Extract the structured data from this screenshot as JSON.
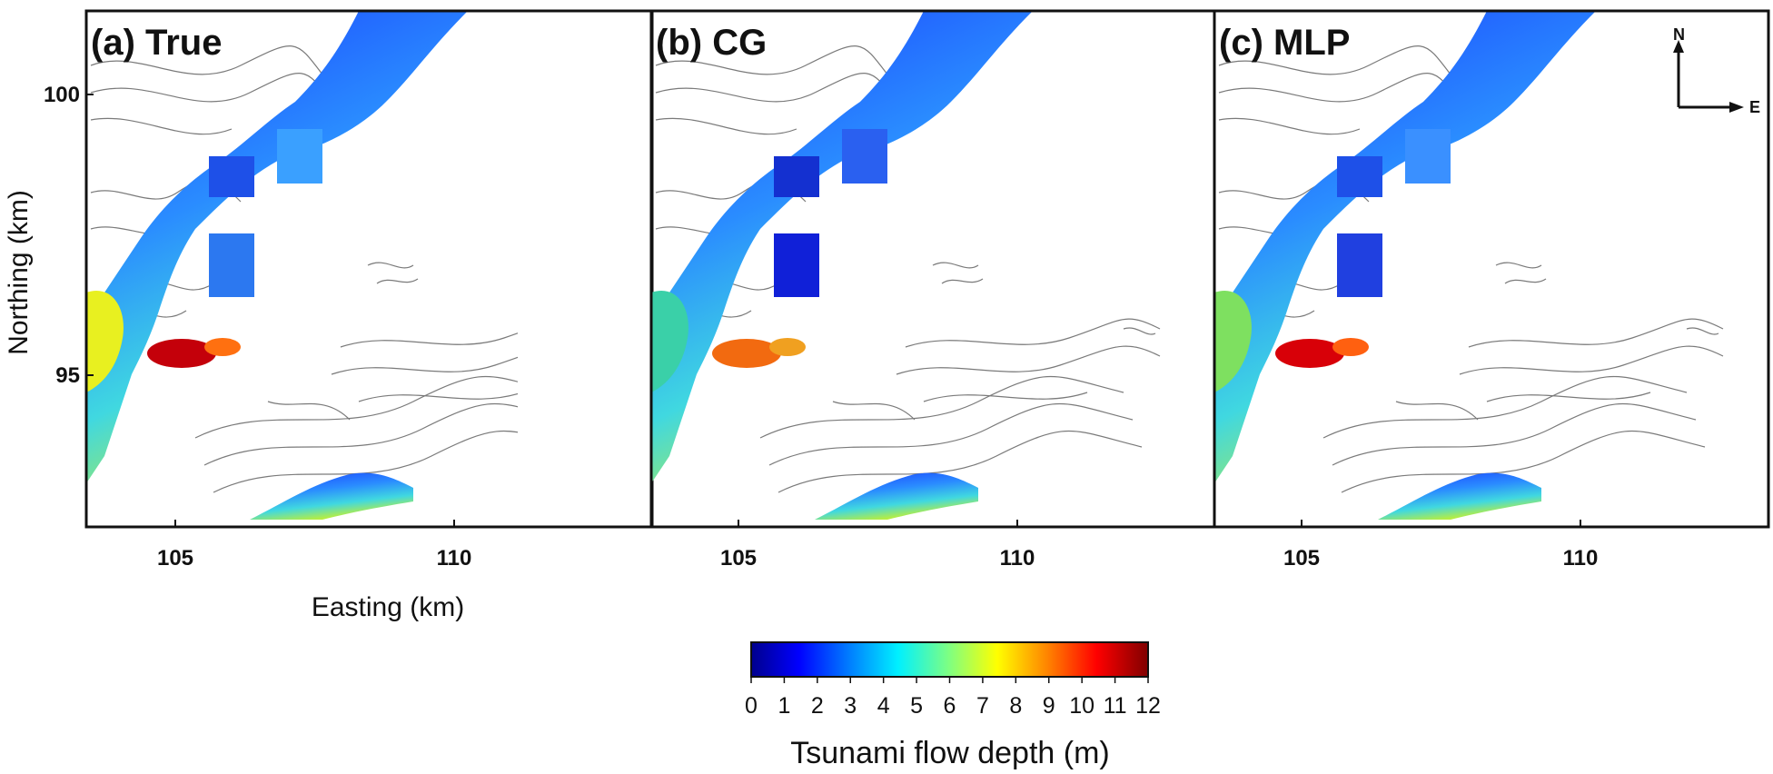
{
  "figure": {
    "panels": [
      {
        "id": "a",
        "label": "(a) True",
        "hotspot_color": "#c4000a",
        "bay_color": "#e8f020"
      },
      {
        "id": "b",
        "label": "(b) CG",
        "hotspot_color": "#f26a10",
        "bay_color": "#3ad0a8"
      },
      {
        "id": "c",
        "label": "(c) MLP",
        "hotspot_color": "#d80008",
        "bay_color": "#7ee060"
      }
    ],
    "x_axis": {
      "title": "Easting (km)",
      "ticks": [
        "105",
        "110"
      ]
    },
    "y_axis": {
      "title": "Northing (km)",
      "ticks": [
        "100",
        "95"
      ]
    },
    "compass": {
      "north": "N",
      "east": "E"
    },
    "colorbar": {
      "title": "Tsunami flow depth (m)",
      "ticks": [
        "0",
        "1",
        "2",
        "3",
        "4",
        "5",
        "6",
        "7",
        "8",
        "9",
        "10",
        "11",
        "12"
      ],
      "min": 0,
      "max": 12,
      "colors": [
        "#00008c",
        "#0000ff",
        "#0080ff",
        "#00f0ff",
        "#80ff80",
        "#ffff00",
        "#ff8000",
        "#ff0000",
        "#800000"
      ]
    }
  }
}
